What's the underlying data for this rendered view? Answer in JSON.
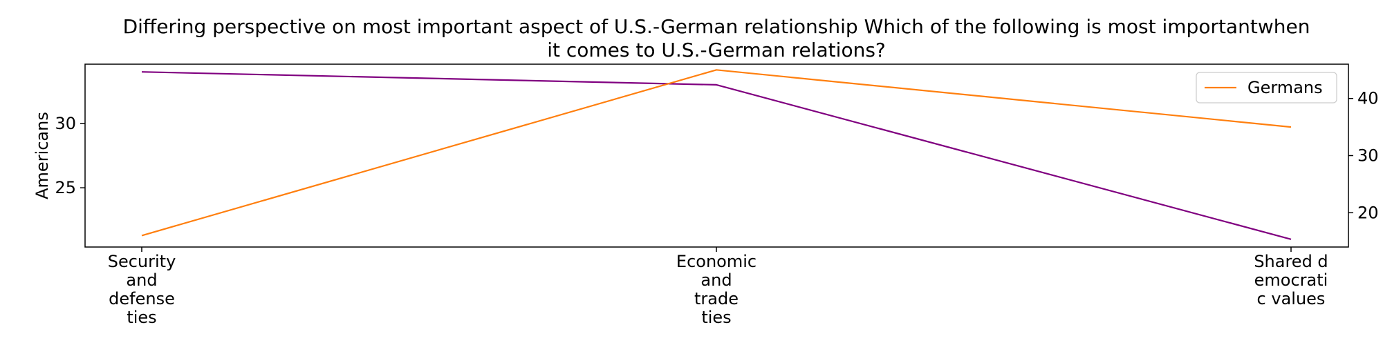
{
  "chart_data": {
    "type": "line",
    "title_lines": [
      "Differing perspective on most important aspect of U.S.-German relationship Which of the following is most importantwhen",
      "it comes to U.S.-German relations?"
    ],
    "category_label_lines": [
      [
        "Security",
        "and",
        "defense",
        "ties"
      ],
      [
        "Economic",
        "and",
        "trade",
        "ties"
      ],
      [
        "Shared d",
        "emocrati",
        "c values"
      ]
    ],
    "categories": [
      "Security and defense ties",
      "Economic and trade ties",
      "Shared democratic values"
    ],
    "y_left": {
      "label": "Americans",
      "ylim": [
        20.4,
        34.6
      ],
      "ticks": [
        25,
        30
      ]
    },
    "y_right": {
      "label": "",
      "ylim": [
        14,
        46
      ],
      "ticks": [
        20,
        30,
        40
      ]
    },
    "series": [
      {
        "name": "Americans",
        "axis": "left",
        "color": "#800080",
        "values": [
          34,
          33,
          21
        ]
      },
      {
        "name": "Germans",
        "axis": "right",
        "color": "#ff7f0e",
        "values": [
          16,
          45,
          35
        ]
      }
    ],
    "legend": {
      "placement": "top-right",
      "entries": [
        "Germans"
      ]
    },
    "grid": false
  }
}
